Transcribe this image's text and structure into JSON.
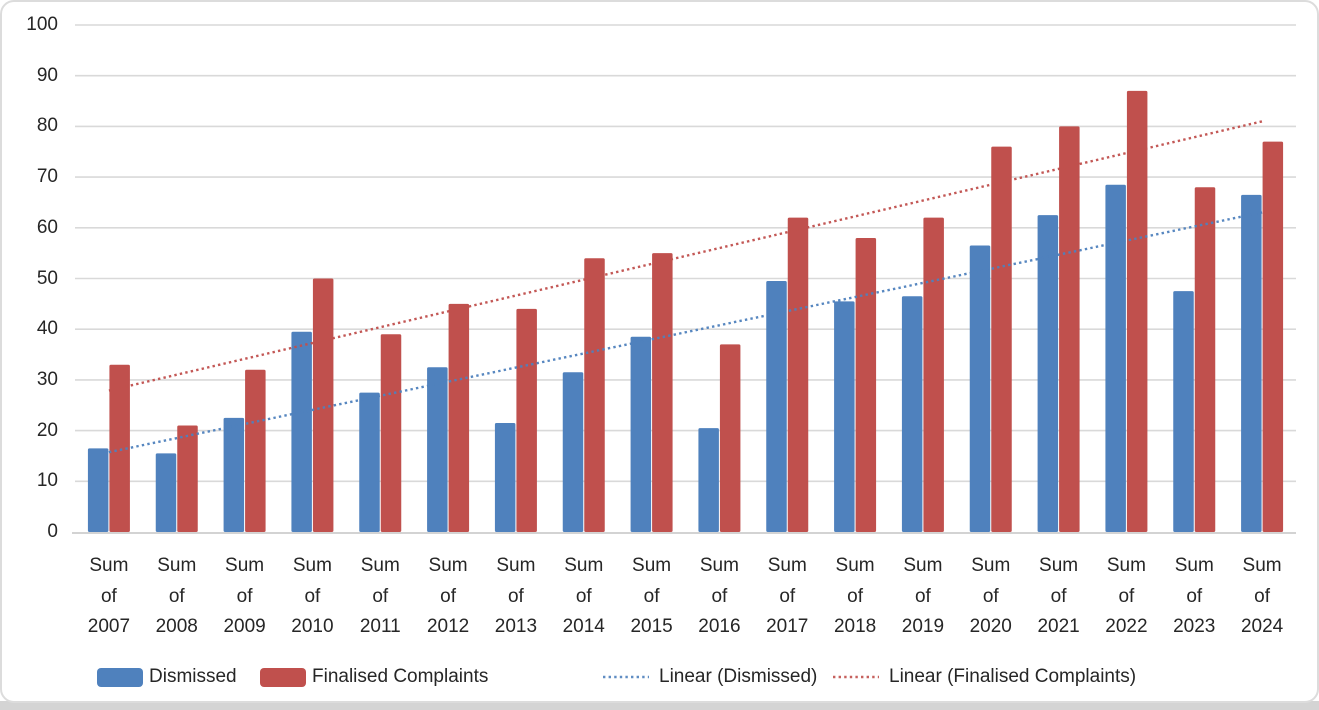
{
  "chart_data": {
    "type": "bar",
    "categories": [
      "Sum of 2007",
      "Sum of 2008",
      "Sum of 2009",
      "Sum of 2010",
      "Sum of 2011",
      "Sum of 2012",
      "Sum of 2013",
      "Sum of 2014",
      "Sum of 2015",
      "Sum of 2016",
      "Sum of 2017",
      "Sum of 2018",
      "Sum of 2019",
      "Sum of 2020",
      "Sum of 2021",
      "Sum of 2022",
      "Sum of 2023",
      "Sum of 2024"
    ],
    "series": [
      {
        "name": "Dismissed",
        "color": "#4F81BD",
        "values": [
          16.5,
          15.5,
          22.5,
          39.5,
          27.5,
          32.5,
          21.5,
          31.5,
          38.5,
          20.5,
          49.5,
          45.5,
          46.5,
          56.5,
          62.5,
          68.5,
          47.5,
          66.5
        ]
      },
      {
        "name": "Finalised Complaints",
        "color": "#C0504D",
        "values": [
          33,
          21,
          32,
          50,
          39,
          45,
          44,
          54,
          55,
          37,
          62,
          58,
          62,
          76,
          80,
          87,
          68,
          77
        ]
      }
    ],
    "trendlines": [
      {
        "label": "Linear (Dismissed)",
        "series_index": 0,
        "color": "#4F81BD",
        "style": "dotted"
      },
      {
        "label": "Linear (Finalised Complaints)",
        "series_index": 1,
        "color": "#C0504D",
        "style": "dotted"
      }
    ],
    "title": "",
    "xlabel": "",
    "ylabel": "",
    "ylim": [
      0,
      100
    ],
    "ytick_step": 10,
    "yticks": [
      0,
      10,
      20,
      30,
      40,
      50,
      60,
      70,
      80,
      90,
      100
    ],
    "grid": true,
    "legend_position": "bottom"
  },
  "colors": {
    "grid": "#d9d9d9",
    "axis_line": "#d3d3d3",
    "text": "#262626",
    "frame_border": "#dcdcdc",
    "background": "#ffffff",
    "outside_strip": "#d4d4d4"
  }
}
